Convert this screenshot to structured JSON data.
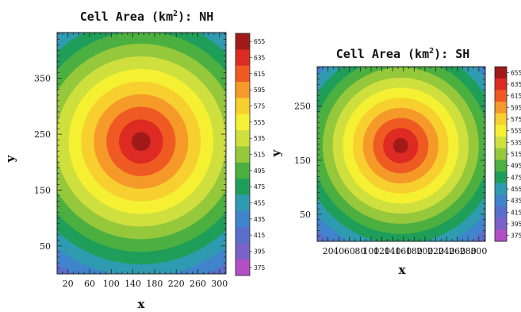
{
  "chart_data": [
    {
      "type": "heatmap",
      "title_prefix": "Cell Area (km",
      "title_sup": "2",
      "title_suffix": "): NH",
      "xlabel": "x",
      "ylabel": "y",
      "xlim": [
        0,
        312
      ],
      "ylim": [
        0,
        432
      ],
      "x_ticks": [
        20,
        60,
        100,
        140,
        180,
        220,
        260,
        300
      ],
      "y_ticks": [
        50,
        150,
        250,
        350
      ],
      "center": [
        155,
        237
      ],
      "field": {
        "center_value": 660,
        "slope_per_unit": 0.86,
        "min_value": 372
      },
      "colorbar": {
        "labels": [
          655,
          635,
          615,
          595,
          575,
          555,
          535,
          515,
          495,
          475,
          455,
          435,
          415,
          395,
          375
        ]
      }
    },
    {
      "type": "heatmap",
      "title_prefix": "Cell Area (km",
      "title_sup": "2",
      "title_suffix": "): SH",
      "xlabel": "x",
      "ylabel": "y",
      "xlim": [
        0,
        312
      ],
      "ylim": [
        0,
        323
      ],
      "x_ticks": [
        20,
        40,
        60,
        80,
        100,
        120,
        140,
        160,
        180,
        200,
        220,
        240,
        260,
        280,
        300
      ],
      "y_ticks": [
        50,
        150,
        250
      ],
      "center": [
        155,
        177
      ],
      "field": {
        "center_value": 660,
        "slope_per_unit": 1.07,
        "min_value": 372
      },
      "colorbar": {
        "labels": [
          655,
          635,
          615,
          595,
          575,
          555,
          535,
          515,
          495,
          475,
          455,
          435,
          415,
          395,
          375
        ]
      }
    }
  ]
}
